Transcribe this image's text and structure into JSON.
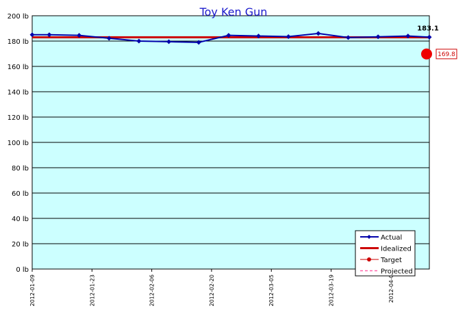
{
  "chart_data": {
    "type": "line",
    "title": "Toy Ken Gun",
    "ylim": [
      0,
      200
    ],
    "y_unit": "lb",
    "y_ticks": [
      {
        "value": 0,
        "label": "0 lb"
      },
      {
        "value": 20,
        "label": "20 lb"
      },
      {
        "value": 40,
        "label": "40 lb"
      },
      {
        "value": 60,
        "label": "60 lb"
      },
      {
        "value": 80,
        "label": "80 lb"
      },
      {
        "value": 100,
        "label": "100 lb"
      },
      {
        "value": 120,
        "label": "120 lb"
      },
      {
        "value": 140,
        "label": "140 lb"
      },
      {
        "value": 160,
        "label": "160 lb"
      },
      {
        "value": 180,
        "label": "180 lb"
      },
      {
        "value": 200,
        "label": "200 lb"
      }
    ],
    "x_ticks": [
      "2012-01-09",
      "2012-01-23",
      "2012-02-06",
      "2012-02-20",
      "2012-03-05",
      "2012-03-19",
      "2012-04-0"
    ],
    "xlim": [
      "2012-01-09",
      "2012-04-11"
    ],
    "grid": true,
    "legend_position": "bottom-right",
    "background_color": "#ccffff",
    "series": [
      {
        "name": "Actual",
        "color": "#0000aa",
        "points": [
          {
            "x": "2012-01-09",
            "y": 185.0
          },
          {
            "x": "2012-01-13",
            "y": 185.0
          },
          {
            "x": "2012-01-20",
            "y": 184.5
          },
          {
            "x": "2012-01-27",
            "y": 182.2
          },
          {
            "x": "2012-02-03",
            "y": 180.0
          },
          {
            "x": "2012-02-10",
            "y": 179.5
          },
          {
            "x": "2012-02-17",
            "y": 179.0
          },
          {
            "x": "2012-02-24",
            "y": 184.5
          },
          {
            "x": "2012-03-02",
            "y": 184.0
          },
          {
            "x": "2012-03-09",
            "y": 183.5
          },
          {
            "x": "2012-03-16",
            "y": 186.0
          },
          {
            "x": "2012-03-23",
            "y": 182.8
          },
          {
            "x": "2012-03-30",
            "y": 183.4
          },
          {
            "x": "2012-04-06",
            "y": 184.0
          },
          {
            "x": "2012-04-11",
            "y": 183.1
          }
        ]
      },
      {
        "name": "Idealized",
        "color": "#cc0000",
        "points": [
          {
            "x": "2012-01-09",
            "y": 183.0
          },
          {
            "x": "2012-04-11",
            "y": 183.0
          }
        ]
      },
      {
        "name": "Target",
        "color": "#cc0000",
        "points": [
          {
            "x": "2012-04-11",
            "y": 169.8
          }
        ]
      },
      {
        "name": "Projected",
        "color": "#ff66aa",
        "points": []
      }
    ],
    "annotations": [
      {
        "text": "183.1",
        "x": "2012-04-11",
        "y": 183.1
      },
      {
        "text": "169.8",
        "x": "2012-04-11",
        "y": 169.8,
        "boxed": true
      }
    ]
  }
}
